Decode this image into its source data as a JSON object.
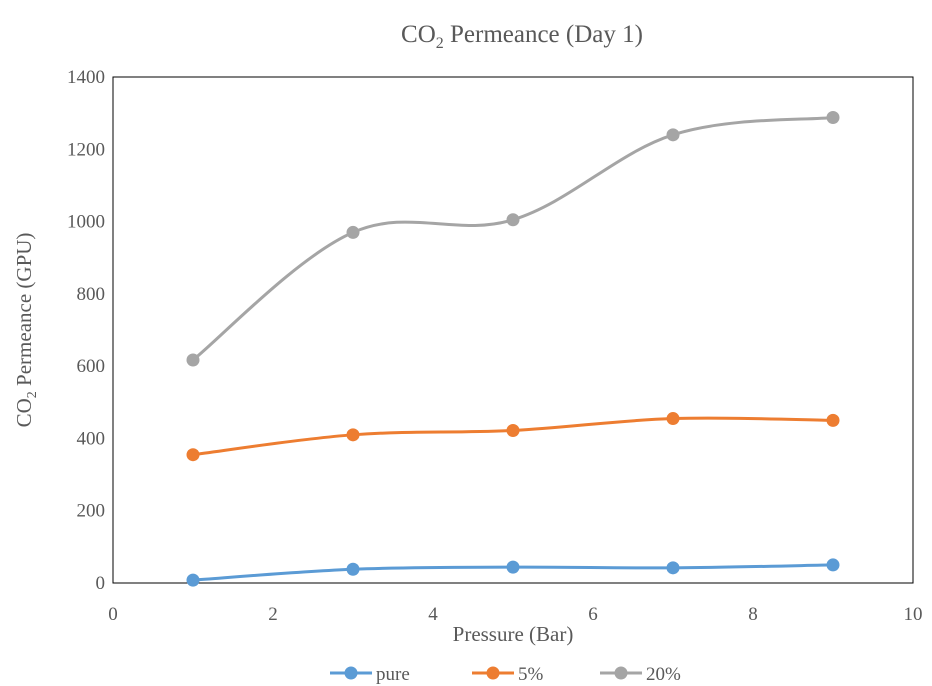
{
  "chart_data": {
    "type": "line",
    "smooth": true,
    "title": {
      "main": "CO",
      "sub": "2",
      "rest": " Permeance (Day 1)"
    },
    "xlabel": "Pressure (Bar)",
    "ylabel": {
      "main": "CO",
      "sub": "2",
      "rest": " Permeance (GPU)"
    },
    "xlim": [
      0,
      10
    ],
    "ylim": [
      0,
      1400
    ],
    "xticks": [
      0,
      2,
      4,
      6,
      8,
      10
    ],
    "yticks": [
      0,
      200,
      400,
      600,
      800,
      1000,
      1200,
      1400
    ],
    "grid": false,
    "legend": "bottom",
    "x": [
      1,
      3,
      5,
      7,
      9
    ],
    "series": [
      {
        "name": "pure",
        "color": "#5B9BD5",
        "values": [
          8,
          38,
          44,
          42,
          50
        ]
      },
      {
        "name": "5%",
        "color": "#ED7D31",
        "values": [
          355,
          410,
          422,
          455,
          450
        ]
      },
      {
        "name": "20%",
        "color": "#A5A5A5",
        "values": [
          617,
          970,
          1005,
          1240,
          1288
        ]
      }
    ]
  }
}
